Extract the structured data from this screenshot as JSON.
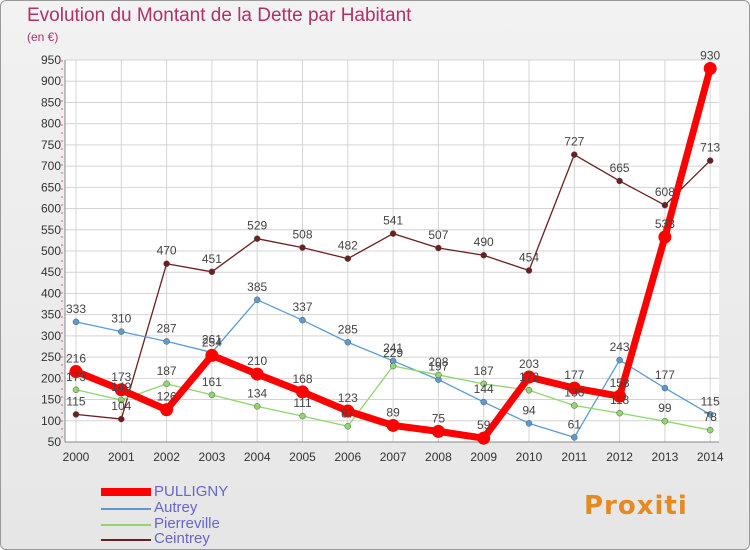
{
  "title": "Evolution du Montant de la Dette par Habitant",
  "subtitle": "(en €)",
  "logo": "Proxiti",
  "chart_data": {
    "type": "line",
    "title": "Evolution du Montant de la Dette par Habitant",
    "ylabel": "(en €)",
    "xlabel": "",
    "ylim": [
      50,
      950
    ],
    "yticks": [
      "50",
      "100",
      "150",
      "200",
      "250",
      "300",
      "350",
      "400",
      "450",
      "500",
      "550",
      "600",
      "650",
      "700",
      "750",
      "800",
      "850",
      "900",
      "950"
    ],
    "categories": [
      "2000",
      "2001",
      "2002",
      "2003",
      "2004",
      "2005",
      "2006",
      "2007",
      "2008",
      "2009",
      "2010",
      "2011",
      "2012",
      "2013",
      "2014"
    ],
    "grid": true,
    "legend_position": "bottom-left",
    "series": [
      {
        "name": "PULLIGNY",
        "color": "#ff0000",
        "values": [
          216,
          173,
          126,
          254,
          210,
          168,
          123,
          89,
          75,
          59,
          203,
          177,
          158,
          533,
          930
        ]
      },
      {
        "name": "Autrey",
        "color": "#5a9bd4",
        "values": [
          333,
          310,
          287,
          261,
          385,
          337,
          285,
          241,
          197,
          144,
          94,
          61,
          243,
          177,
          115
        ]
      },
      {
        "name": "Pierreville",
        "color": "#8fd66b",
        "values": [
          173,
          149,
          187,
          161,
          134,
          111,
          87,
          229,
          208,
          187,
          172,
          136,
          118,
          99,
          78
        ]
      },
      {
        "name": "Ceintrey",
        "color": "#6b1f1f",
        "values": [
          115,
          104,
          470,
          451,
          529,
          508,
          482,
          541,
          507,
          490,
          454,
          727,
          665,
          608,
          713
        ]
      }
    ]
  }
}
